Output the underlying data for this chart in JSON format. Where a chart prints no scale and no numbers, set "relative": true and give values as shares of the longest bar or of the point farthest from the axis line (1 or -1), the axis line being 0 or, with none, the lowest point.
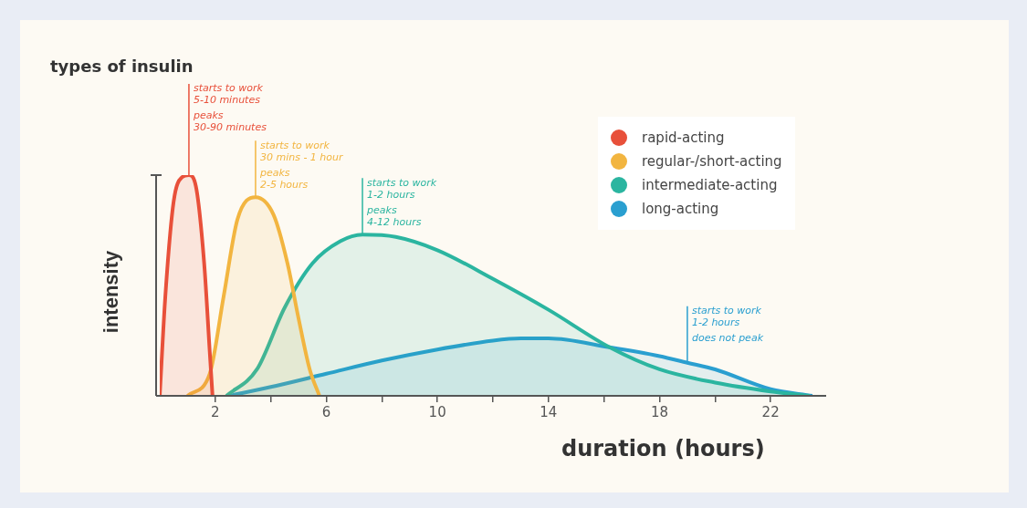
{
  "chart_data": {
    "type": "area",
    "title": "types of insulin",
    "xlabel": "duration (hours)",
    "ylabel": "intensity",
    "relative": true,
    "xlim": [
      0,
      24
    ],
    "xticks": [
      2,
      {
        "value": 4,
        "label": null
      },
      6,
      {
        "value": 8,
        "label": null
      },
      10,
      {
        "value": 12,
        "label": null
      },
      14,
      {
        "value": 16,
        "label": null
      },
      18,
      {
        "value": 20,
        "label": null
      },
      22
    ],
    "grid": false,
    "legend": "top right",
    "marker": "none",
    "line_style": "solid",
    "series": [
      {
        "name": "rapid-acting",
        "color": "#e8503a",
        "x": [
          0,
          0.2,
          0.5,
          0.8,
          1.05,
          1.3,
          1.6,
          1.8,
          1.9
        ],
        "values": [
          0,
          0.45,
          0.88,
          0.99,
          1,
          0.95,
          0.6,
          0.2,
          0
        ]
      },
      {
        "name": "regular-/short-acting",
        "color": "#f2b540",
        "x": [
          1,
          1.8,
          2.3,
          2.8,
          3.45,
          4.1,
          4.6,
          5,
          5.4,
          5.75
        ],
        "values": [
          0,
          0.1,
          0.45,
          0.8,
          0.9,
          0.82,
          0.6,
          0.35,
          0.12,
          0
        ]
      },
      {
        "name": "intermediate-acting",
        "color": "#2bb5a0",
        "x": [
          2.4,
          3.5,
          4.5,
          5.5,
          6.5,
          7.3,
          8.5,
          10,
          12,
          14,
          16.2,
          18,
          20,
          22,
          23.4
        ],
        "values": [
          0,
          0.12,
          0.4,
          0.6,
          0.7,
          0.73,
          0.72,
          0.66,
          0.53,
          0.39,
          0.22,
          0.12,
          0.06,
          0.02,
          0
        ]
      },
      {
        "name": "long-acting",
        "color": "#2a9fd0",
        "x": [
          2.5,
          4,
          6,
          8,
          10,
          12,
          13,
          14,
          16.2,
          18,
          19,
          20,
          22,
          23.5
        ],
        "values": [
          0,
          0.04,
          0.1,
          0.16,
          0.21,
          0.25,
          0.26,
          0.26,
          0.22,
          0.18,
          0.15,
          0.12,
          0.03,
          0
        ]
      }
    ],
    "annotations": [
      {
        "text": "starts to work\n5-10 minutes\npeaks\n30-90 minutes",
        "x": 1.05,
        "y": 1
      },
      {
        "text": "starts to work\n30 mins - 1 hour\npeaks\n2-5 hours",
        "x": 3.45,
        "y": 0.9
      },
      {
        "text": "starts to work\n1-2 hours\npeaks\n4-12 hours",
        "x": 7.3,
        "y": 0.73
      },
      {
        "text": "starts to work\n1-2 hours\ndoes not peak",
        "x": 19,
        "y": 0.15
      }
    ]
  }
}
